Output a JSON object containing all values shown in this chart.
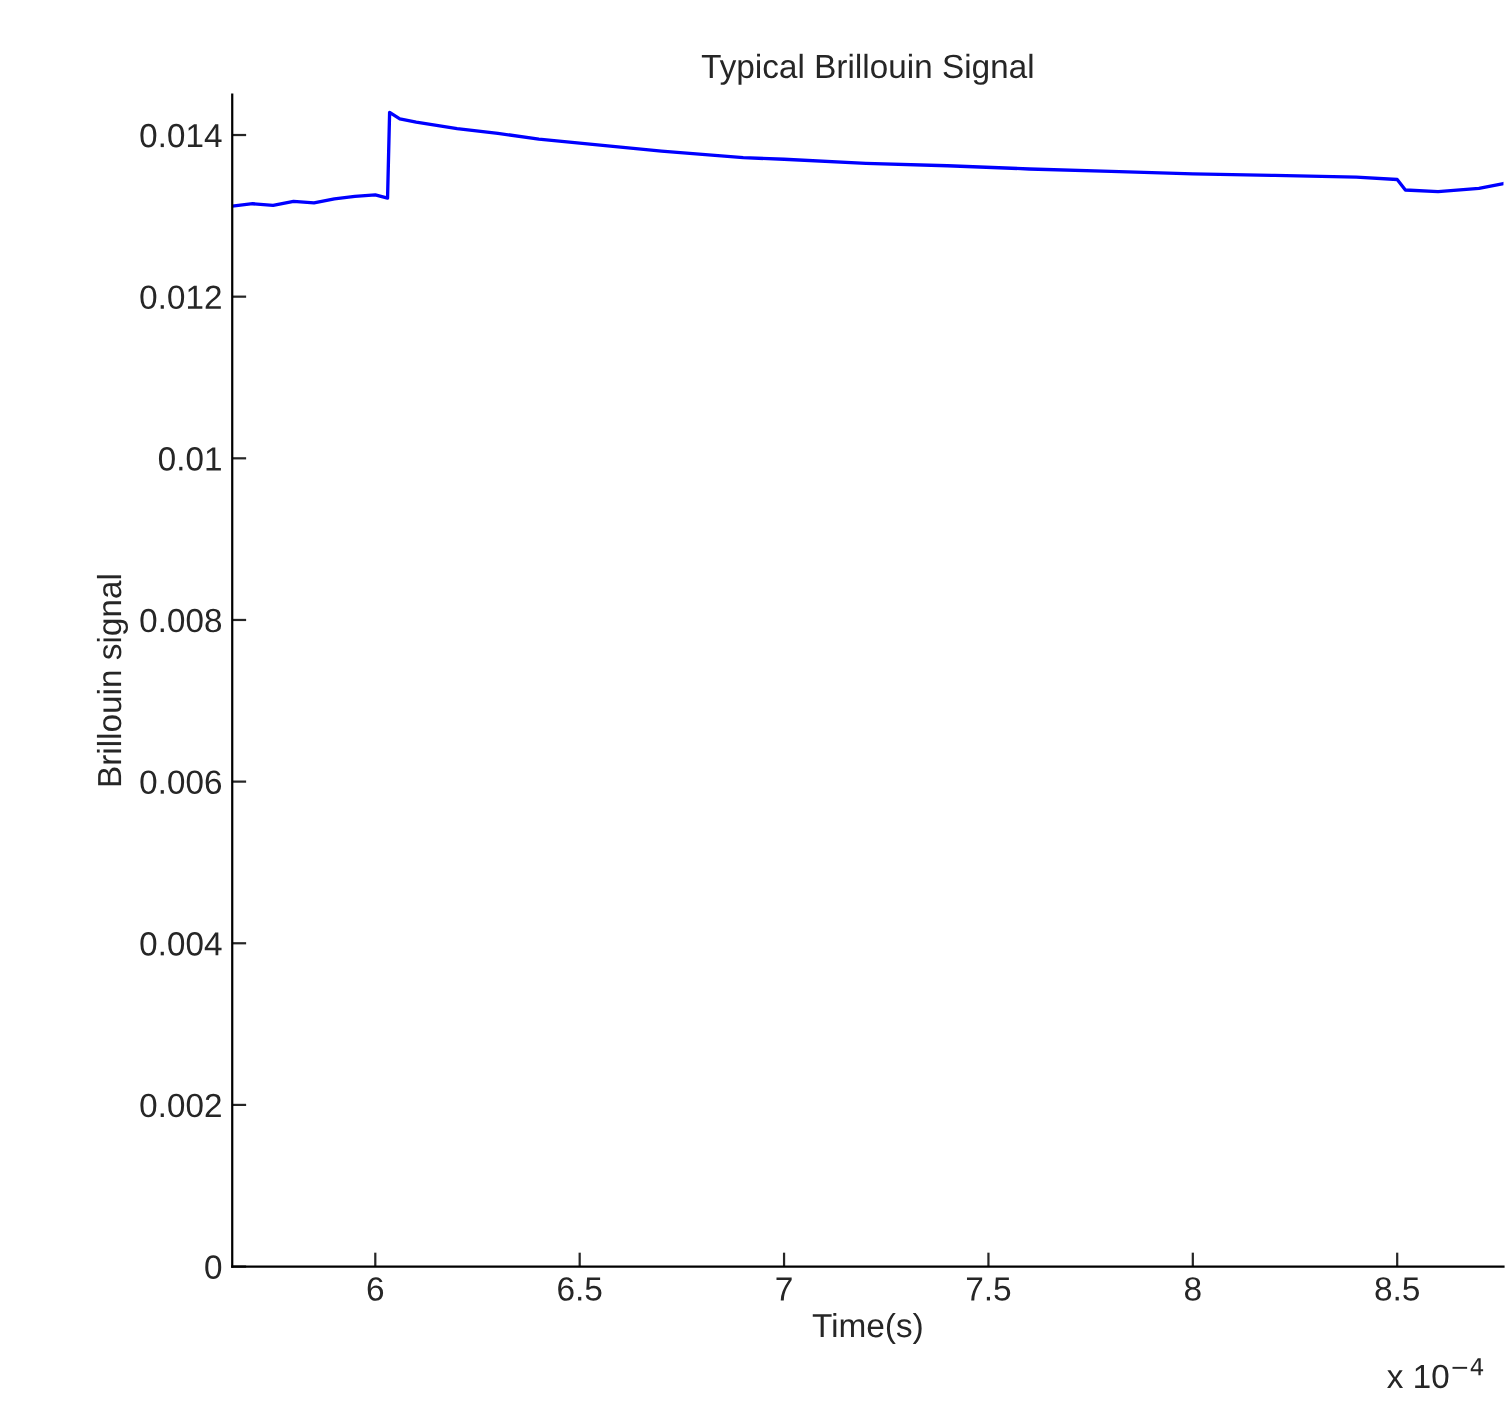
{
  "chart_data": {
    "type": "line",
    "title": "Typical Brillouin Signal",
    "xlabel": "Time(s)",
    "ylabel": "Brillouin signal",
    "annotations": [
      "x 10$^{−4}$"
    ],
    "x": [
      5.65,
      5.7,
      5.75,
      5.8,
      5.85,
      5.9,
      5.95,
      6.0,
      6.03,
      6.035,
      6.06,
      6.1,
      6.2,
      6.3,
      6.4,
      6.5,
      6.6,
      6.7,
      6.8,
      6.9,
      7.0,
      7.2,
      7.4,
      7.6,
      7.8,
      8.0,
      8.2,
      8.4,
      8.5,
      8.52,
      8.6,
      8.7,
      8.76
    ],
    "series": [
      {
        "color": "#0000ff",
        "values": [
          0.01312,
          0.01315,
          0.01313,
          0.01318,
          0.01316,
          0.01321,
          0.01324,
          0.01326,
          0.01322,
          0.01428,
          0.0142,
          0.01416,
          0.01408,
          0.01402,
          0.01395,
          0.0139,
          0.01385,
          0.0138,
          0.01376,
          0.01372,
          0.0137,
          0.01365,
          0.01362,
          0.01358,
          0.01355,
          0.01352,
          0.0135,
          0.01348,
          0.01345,
          0.01332,
          0.0133,
          0.01334,
          0.0134
        ]
      }
    ],
    "xlim": [
      5.65,
      8.76
    ],
    "ylim": [
      0,
      0.0145
    ],
    "xticks": [
      6,
      6.5,
      7,
      7.5,
      8,
      8.5
    ],
    "yticks": [
      0,
      0.002,
      0.004,
      0.006,
      0.008,
      0.01,
      0.012,
      0.014
    ],
    "grid": false,
    "legend": false
  }
}
